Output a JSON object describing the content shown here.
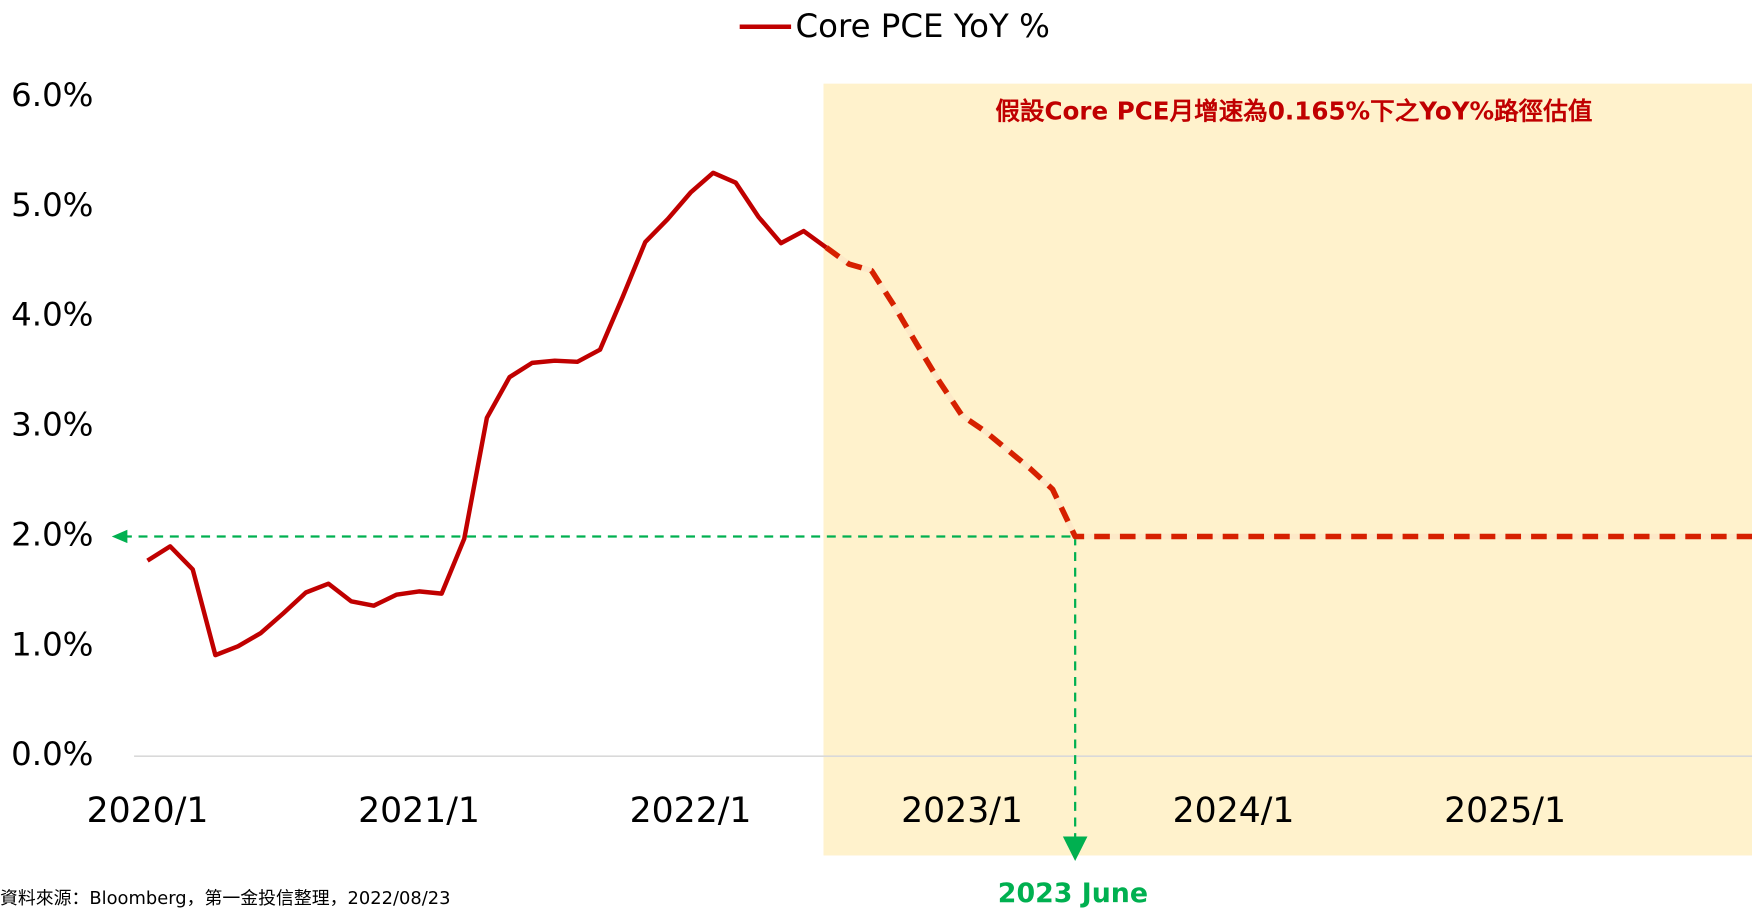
{
  "chart_data": {
    "type": "line",
    "legend_label": "Core PCE YoY %",
    "categories": [
      "2020/1",
      null,
      null,
      null,
      null,
      null,
      null,
      null,
      null,
      null,
      null,
      null,
      "2021/1",
      null,
      null,
      null,
      null,
      null,
      null,
      null,
      null,
      null,
      null,
      null,
      "2022/1",
      null,
      null,
      null,
      null,
      null,
      null,
      null,
      null,
      null,
      null,
      null,
      "2023/1",
      null,
      null,
      null,
      null,
      null,
      null,
      null,
      null,
      null,
      null,
      null,
      "2024/1",
      null,
      null,
      null,
      null,
      null,
      null,
      null,
      null,
      null,
      null,
      null,
      "2025/1",
      null,
      null,
      null,
      null,
      null,
      null,
      null,
      null,
      null,
      null,
      null
    ],
    "series": [
      {
        "name": "Core PCE YoY %",
        "color": "#c00000",
        "values": [
          1.78,
          1.91,
          1.7,
          0.92,
          1.0,
          1.12,
          1.3,
          1.49,
          1.57,
          1.41,
          1.37,
          1.47,
          1.5,
          1.48,
          1.98,
          3.08,
          3.45,
          3.58,
          3.6,
          3.59,
          3.7,
          4.18,
          4.68,
          4.89,
          5.13,
          5.31,
          5.22,
          4.91,
          4.67,
          4.78,
          4.63,
          null,
          null,
          null,
          null,
          null,
          null,
          null,
          null,
          null,
          null,
          null,
          null,
          null,
          null,
          null,
          null,
          null,
          null,
          null,
          null,
          null,
          null,
          null,
          null,
          null,
          null,
          null,
          null,
          null,
          null,
          null,
          null,
          null,
          null,
          null,
          null,
          null,
          null,
          null,
          null,
          null
        ]
      },
      {
        "color": "#d62000",
        "dashed": true,
        "values": [
          null,
          null,
          null,
          null,
          null,
          null,
          null,
          null,
          null,
          null,
          null,
          null,
          null,
          null,
          null,
          null,
          null,
          null,
          null,
          null,
          null,
          null,
          null,
          null,
          null,
          null,
          null,
          null,
          null,
          null,
          4.63,
          4.48,
          4.42,
          4.1,
          3.75,
          3.41,
          3.1,
          2.96,
          2.79,
          2.62,
          2.43,
          2.0,
          2.0,
          2.0,
          2.0,
          2.0,
          2.0,
          2.0,
          2.0,
          2.0,
          2.0,
          2.0,
          2.0,
          2.0,
          2.0,
          2.0,
          2.0,
          2.0,
          2.0,
          2.0,
          2.0,
          2.0,
          2.0,
          2.0,
          2.0,
          2.0,
          2.0,
          2.0,
          2.0,
          2.0,
          2.0,
          2.0
        ]
      }
    ],
    "ylim": [
      0,
      6
    ],
    "yticks": [
      {
        "value": 0,
        "label": "0.0%"
      },
      {
        "value": 1,
        "label": "1.0%"
      },
      {
        "value": 2,
        "label": "2.0%"
      },
      {
        "value": 3,
        "label": "3.0%"
      },
      {
        "value": 4,
        "label": "4.0%"
      },
      {
        "value": 5,
        "label": "5.0%"
      },
      {
        "value": 6,
        "label": "6.0%"
      }
    ],
    "shade_label": "假設Core PCE月增速為0.165%下之YoY%路徑估值",
    "target_label": "2023 June",
    "source": "資料來源：Bloomberg，第一金投信整理，2022/08/23"
  }
}
